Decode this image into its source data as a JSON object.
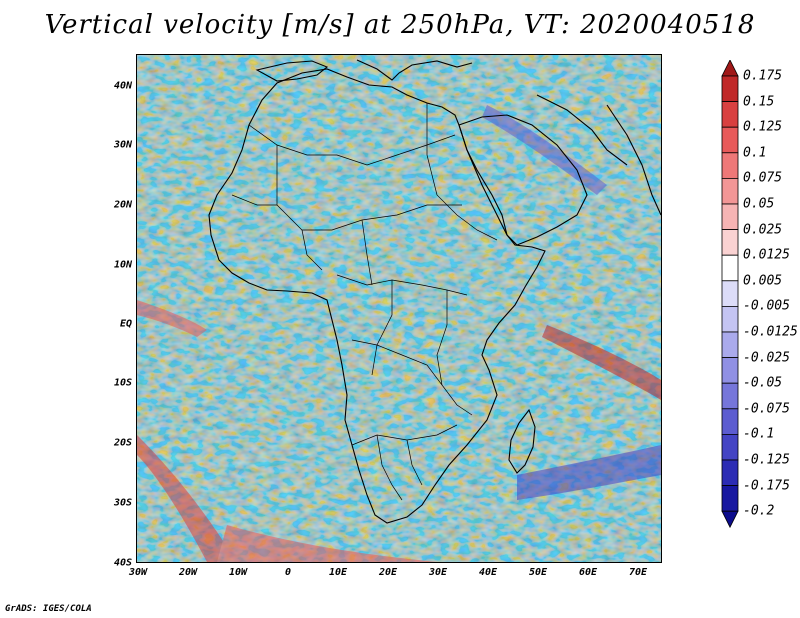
{
  "title": "Vertical velocity [m/s] at 250hPa, VT: 2020040518",
  "footer": "GrADS: IGES/COLA",
  "map": {
    "lat_labels": [
      "40N",
      "30N",
      "20N",
      "10N",
      "EQ",
      "10S",
      "20S",
      "30S",
      "40S"
    ],
    "lat_values": [
      40,
      30,
      20,
      10,
      0,
      -10,
      -20,
      -30,
      -40
    ],
    "lon_labels": [
      "30W",
      "20W",
      "10W",
      "0",
      "10E",
      "20E",
      "30E",
      "40E",
      "50E",
      "60E",
      "70E"
    ],
    "lon_values": [
      -30,
      -20,
      -10,
      0,
      10,
      20,
      30,
      40,
      50,
      60,
      70
    ],
    "extent": {
      "lon_min": -30,
      "lon_max": 75,
      "lat_min": -40,
      "lat_max": 45
    }
  },
  "colorbar": {
    "labels": [
      "0.175",
      "0.15",
      "0.125",
      "0.1",
      "0.075",
      "0.05",
      "0.025",
      "0.0125",
      "0.005",
      "-0.005",
      "-0.0125",
      "-0.025",
      "-0.05",
      "-0.075",
      "-0.1",
      "-0.125",
      "-0.175",
      "-0.2"
    ],
    "colors": [
      "#a01818",
      "#c02828",
      "#d84040",
      "#e85a5a",
      "#ee7878",
      "#f29696",
      "#f6b4b4",
      "#fad2d2",
      "#ffffff",
      "#dcdcf8",
      "#c4c4f2",
      "#aaaaec",
      "#9090e4",
      "#7676da",
      "#5c5cd0",
      "#4444c4",
      "#2c2cb4",
      "#1818a0",
      "#0c0c8c"
    ]
  },
  "colors": {
    "ocean_base": "#d8d8f2",
    "land_base": "#ececf6",
    "coast": "#000000"
  }
}
